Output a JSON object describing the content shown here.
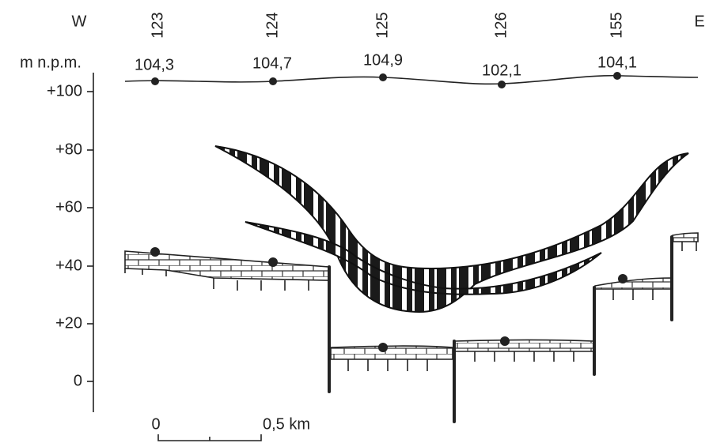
{
  "header": {
    "west": "W",
    "east": "E"
  },
  "boreholes": [
    {
      "label": "123",
      "elevation": "104,3"
    },
    {
      "label": "124",
      "elevation": "104,7"
    },
    {
      "label": "125",
      "elevation": "104,9"
    },
    {
      "label": "126",
      "elevation": "102,1"
    },
    {
      "label": "155",
      "elevation": "104,1"
    }
  ],
  "axis": {
    "unit": "m n.p.m.",
    "ticks": [
      "+100",
      "+80",
      "+60",
      "+40",
      "+20",
      "0"
    ]
  },
  "scale": {
    "start": "0",
    "end": "0,5 km"
  }
}
